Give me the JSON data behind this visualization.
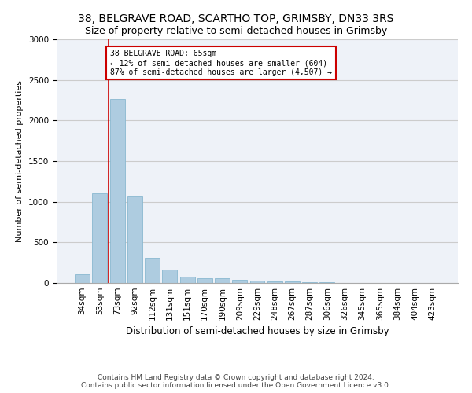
{
  "title": "38, BELGRAVE ROAD, SCARTHO TOP, GRIMSBY, DN33 3RS",
  "subtitle": "Size of property relative to semi-detached houses in Grimsby",
  "xlabel": "Distribution of semi-detached houses by size in Grimsby",
  "ylabel": "Number of semi-detached properties",
  "categories": [
    "34sqm",
    "53sqm",
    "73sqm",
    "92sqm",
    "112sqm",
    "131sqm",
    "151sqm",
    "170sqm",
    "190sqm",
    "209sqm",
    "229sqm",
    "248sqm",
    "267sqm",
    "287sqm",
    "306sqm",
    "326sqm",
    "345sqm",
    "365sqm",
    "384sqm",
    "404sqm",
    "423sqm"
  ],
  "values": [
    110,
    1100,
    2260,
    1060,
    310,
    160,
    80,
    60,
    55,
    35,
    25,
    20,
    15,
    5,
    5,
    3,
    2,
    2,
    1,
    1,
    1
  ],
  "bar_color": "#aecce0",
  "bar_edge_color": "#8ab8d0",
  "vline_x": 1.5,
  "vline_color": "#cc0000",
  "annotation_box_text": "38 BELGRAVE ROAD: 65sqm\n← 12% of semi-detached houses are smaller (604)\n87% of semi-detached houses are larger (4,507) →",
  "annotation_box_color": "#cc0000",
  "ylim": [
    0,
    3000
  ],
  "yticks": [
    0,
    500,
    1000,
    1500,
    2000,
    2500,
    3000
  ],
  "grid_color": "#cccccc",
  "bg_color": "#eef2f8",
  "footer": "Contains HM Land Registry data © Crown copyright and database right 2024.\nContains public sector information licensed under the Open Government Licence v3.0.",
  "title_fontsize": 10,
  "subtitle_fontsize": 9,
  "xlabel_fontsize": 8.5,
  "ylabel_fontsize": 8,
  "tick_fontsize": 7.5,
  "footer_fontsize": 6.5
}
